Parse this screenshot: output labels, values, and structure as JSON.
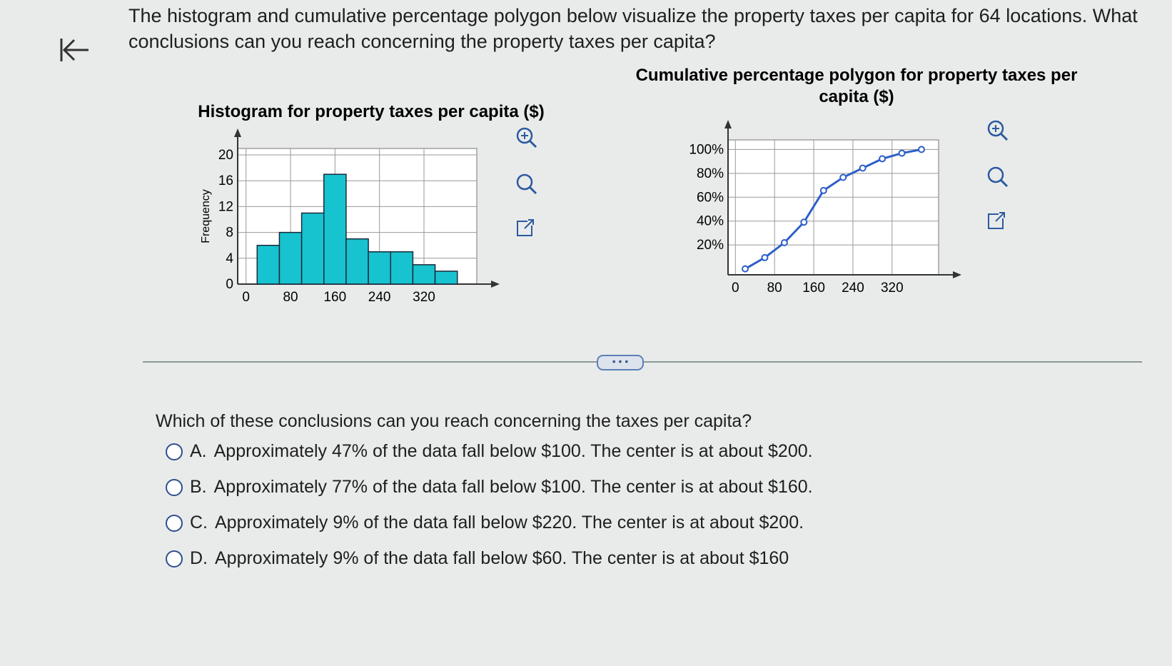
{
  "question": {
    "text": "The histogram and cumulative percentage polygon below visualize the property taxes per capita for 64 locations. What conclusions can you reach concerning the property taxes per capita?"
  },
  "chart_data": [
    {
      "type": "histogram",
      "title": "Histogram for property taxes per capita ($)",
      "y_label": "Frequency",
      "bins": [
        20,
        60,
        100,
        140,
        180,
        220,
        260,
        300,
        340,
        380
      ],
      "values": [
        6,
        8,
        11,
        17,
        7,
        5,
        5,
        3,
        2
      ],
      "color": "#17c3cf",
      "xlim": [
        -15,
        415
      ],
      "xticks": [
        0,
        80,
        160,
        240,
        320
      ],
      "ylim": [
        0,
        21
      ],
      "yticks": [
        0,
        4,
        8,
        12,
        16,
        20
      ],
      "grid": true
    },
    {
      "type": "line",
      "title": "Cumulative percentage polygon for property taxes per capita ($)",
      "x": [
        20,
        60,
        100,
        140,
        180,
        220,
        260,
        300,
        340,
        380
      ],
      "values": [
        0,
        9.4,
        21.9,
        39.1,
        65.6,
        76.6,
        84.4,
        92.2,
        96.9,
        100
      ],
      "color": "#2d5fc8",
      "xlim": [
        -15,
        415
      ],
      "xticks": [
        0,
        80,
        160,
        240,
        320
      ],
      "ylim": [
        -5,
        108
      ],
      "yticks": [
        {
          "value": 20,
          "label": "20%"
        },
        {
          "value": 40,
          "label": "40%"
        },
        {
          "value": 60,
          "label": "60%"
        },
        {
          "value": 80,
          "label": "80%"
        },
        {
          "value": 100,
          "label": "100%"
        }
      ],
      "grid": true
    }
  ],
  "prompt": "Which of these conclusions can you reach concerning the taxes per capita?",
  "options": [
    {
      "letter": "A.",
      "text": "Approximately 47% of the data fall below $100. The center is at about $200."
    },
    {
      "letter": "B.",
      "text": "Approximately 77% of the data fall below $100. The center is at about $160."
    },
    {
      "letter": "C.",
      "text": "Approximately 9% of the data fall below $220. The center is at about $200."
    },
    {
      "letter": "D.",
      "text": "Approximately 9% of the data fall below $60. The center is at about $160"
    }
  ]
}
